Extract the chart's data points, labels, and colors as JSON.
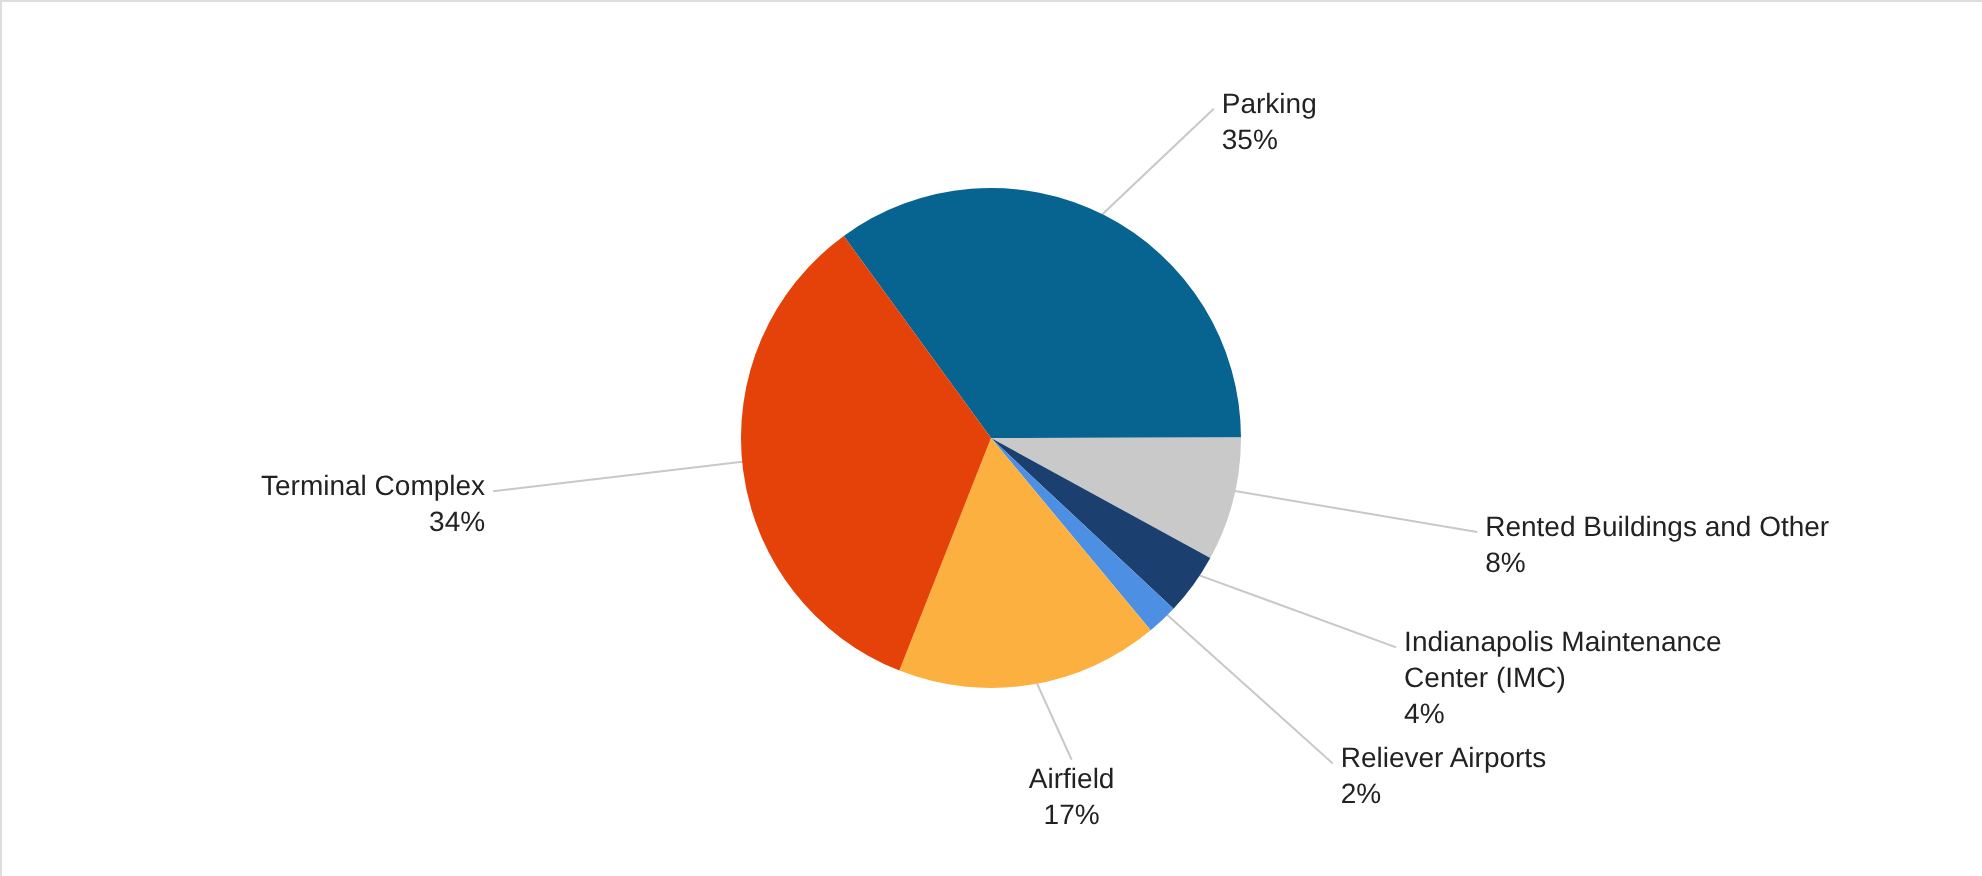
{
  "chart_data": {
    "type": "pie",
    "categories": [
      "Parking",
      "Rented Buildings and Other",
      "Indianapolis Maintenance Center (IMC)",
      "Reliever Airports",
      "Airfield",
      "Terminal Complex"
    ],
    "values": [
      35,
      8,
      4,
      2,
      17,
      34
    ],
    "value_labels": [
      "35%",
      "8%",
      "4%",
      "2%",
      "17%",
      "34%"
    ],
    "colors": [
      "#07638f",
      "#c9c9c9",
      "#1b3f6e",
      "#4d8fe3",
      "#fbb040",
      "#e5420a"
    ]
  }
}
